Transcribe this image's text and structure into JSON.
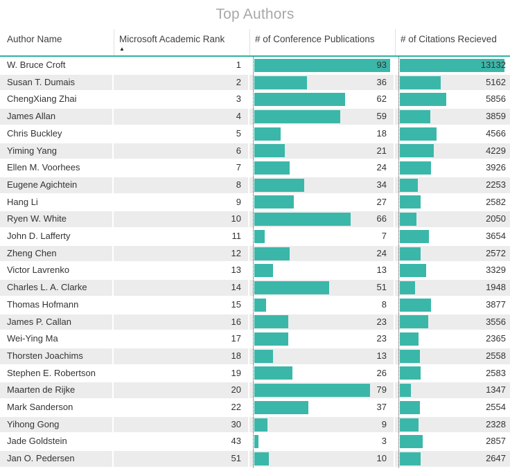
{
  "sort": {
    "icon": "▲",
    "column": "Microsoft Academic Rank",
    "direction": "ascending"
  },
  "colors": {
    "bar": "#3bb7a9",
    "header_underline": "#2db2a3",
    "row_stripe": "#ececec",
    "title_text": "#a8a8a8",
    "body_text": "#333333",
    "dotted_divider": "#404040"
  },
  "chart_data": {
    "type": "table",
    "title": "Top Authors",
    "columns": [
      "Author Name",
      "Microsoft Academic Rank",
      "# of Conference Publications",
      "# of Citations Recieved"
    ],
    "sorted_by": "Microsoft Academic Rank",
    "sort_direction": "ascending",
    "bar_columns": [
      "# of Conference Publications",
      "# of Citations Recieved"
    ],
    "bar_scale_max": {
      "publications": 93,
      "citations": 13132
    },
    "rows": [
      {
        "author": "W. Bruce Croft",
        "rank": 1,
        "publications": 93,
        "citations": 13132
      },
      {
        "author": "Susan T. Dumais",
        "rank": 2,
        "publications": 36,
        "citations": 5162
      },
      {
        "author": "ChengXiang Zhai",
        "rank": 3,
        "publications": 62,
        "citations": 5856
      },
      {
        "author": "James Allan",
        "rank": 4,
        "publications": 59,
        "citations": 3859
      },
      {
        "author": "Chris Buckley",
        "rank": 5,
        "publications": 18,
        "citations": 4566
      },
      {
        "author": "Yiming Yang",
        "rank": 6,
        "publications": 21,
        "citations": 4229
      },
      {
        "author": "Ellen M. Voorhees",
        "rank": 7,
        "publications": 24,
        "citations": 3926
      },
      {
        "author": "Eugene Agichtein",
        "rank": 8,
        "publications": 34,
        "citations": 2253
      },
      {
        "author": "Hang Li",
        "rank": 9,
        "publications": 27,
        "citations": 2582
      },
      {
        "author": "Ryen W. White",
        "rank": 10,
        "publications": 66,
        "citations": 2050
      },
      {
        "author": "John D. Lafferty",
        "rank": 11,
        "publications": 7,
        "citations": 3654
      },
      {
        "author": "Zheng Chen",
        "rank": 12,
        "publications": 24,
        "citations": 2572
      },
      {
        "author": "Victor Lavrenko",
        "rank": 13,
        "publications": 13,
        "citations": 3329
      },
      {
        "author": "Charles L. A. Clarke",
        "rank": 14,
        "publications": 51,
        "citations": 1948
      },
      {
        "author": "Thomas Hofmann",
        "rank": 15,
        "publications": 8,
        "citations": 3877
      },
      {
        "author": "James P. Callan",
        "rank": 16,
        "publications": 23,
        "citations": 3556
      },
      {
        "author": "Wei-Ying Ma",
        "rank": 17,
        "publications": 23,
        "citations": 2365
      },
      {
        "author": "Thorsten Joachims",
        "rank": 18,
        "publications": 13,
        "citations": 2558
      },
      {
        "author": "Stephen E. Robertson",
        "rank": 19,
        "publications": 26,
        "citations": 2583
      },
      {
        "author": "Maarten de Rijke",
        "rank": 20,
        "publications": 79,
        "citations": 1347
      },
      {
        "author": "Mark Sanderson",
        "rank": 22,
        "publications": 37,
        "citations": 2554
      },
      {
        "author": "Yihong Gong",
        "rank": 30,
        "publications": 9,
        "citations": 2328
      },
      {
        "author": "Jade Goldstein",
        "rank": 43,
        "publications": 3,
        "citations": 2857
      },
      {
        "author": "Jan O. Pedersen",
        "rank": 51,
        "publications": 10,
        "citations": 2647
      }
    ]
  }
}
